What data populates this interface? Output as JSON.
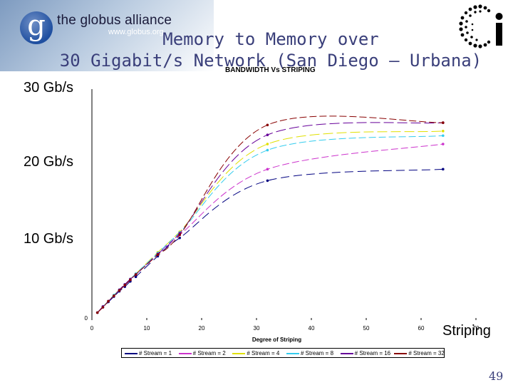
{
  "header": {
    "logo_text": "the globus alliance",
    "logo_url": "www.globus.org",
    "logo_letter": "g",
    "title_line1": "Memory to Memory over",
    "title_line2": "30 Gigabit/s Network (San Diego — Urbana)",
    "page_number": "49"
  },
  "annotations": {
    "y_30": "30 Gb/s",
    "y_20": "20 Gb/s",
    "y_10": "10 Gb/s",
    "x_striping": "Striping"
  },
  "colors": {
    "stream_1": "#000080",
    "stream_2": "#cc33cc",
    "stream_4": "#e0e000",
    "stream_8": "#33ccee",
    "stream_16": "#660099",
    "stream_32": "#880000"
  },
  "chart_data": {
    "type": "line",
    "title": "BANDWIDTH Vs STRIPING",
    "xlabel": "Degree of Striping",
    "ylabel": "",
    "xlim": [
      0,
      70
    ],
    "ylim": [
      0,
      30
    ],
    "x_ticks": [
      "0",
      "10",
      "20",
      "30",
      "40",
      "50",
      "60",
      "70"
    ],
    "y_ticks": [
      "0"
    ],
    "legend_position": "bottom",
    "x": [
      1,
      2,
      3,
      4,
      5,
      6,
      7,
      8,
      12,
      16,
      32,
      64
    ],
    "series": [
      {
        "name": "# Stream = 1",
        "values": [
          0.7,
          1.4,
          2.1,
          2.8,
          3.5,
          4.1,
          4.8,
          5.4,
          8.1,
          10.5,
          18.0,
          19.5
        ]
      },
      {
        "name": "# Stream = 2",
        "values": [
          0.7,
          1.4,
          2.2,
          2.9,
          3.6,
          4.3,
          5.0,
          5.7,
          8.3,
          10.9,
          19.5,
          22.8
        ]
      },
      {
        "name": "# Stream = 4",
        "values": [
          0.7,
          1.5,
          2.2,
          3.0,
          3.7,
          4.4,
          5.1,
          5.8,
          8.6,
          11.3,
          22.8,
          24.5
        ]
      },
      {
        "name": "# Stream = 8",
        "values": [
          0.7,
          1.5,
          2.2,
          3.0,
          3.7,
          4.4,
          5.1,
          5.8,
          8.5,
          11.2,
          22.0,
          23.9
        ]
      },
      {
        "name": "# Stream = 16",
        "values": [
          0.7,
          1.5,
          2.2,
          2.9,
          3.7,
          4.4,
          5.1,
          5.7,
          8.4,
          11.1,
          24.0,
          25.6
        ]
      },
      {
        "name": "# Stream = 32",
        "values": [
          0.7,
          1.4,
          2.2,
          2.9,
          3.6,
          4.3,
          5.0,
          5.7,
          8.3,
          10.9,
          25.3,
          25.6
        ]
      }
    ]
  }
}
